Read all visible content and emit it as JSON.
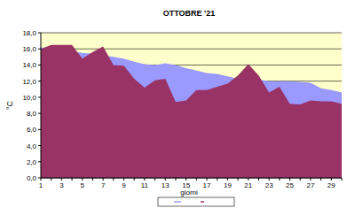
{
  "chart_data": {
    "type": "area",
    "title": "OTTOBRE '21",
    "x_label": "giorni",
    "y_label": "°C",
    "categories": [
      "1",
      null,
      "3",
      null,
      "5",
      null,
      "7",
      null,
      "9",
      null,
      "11",
      null,
      "13",
      null,
      "15",
      null,
      "17",
      null,
      "19",
      null,
      "21",
      null,
      "23",
      null,
      "25",
      null,
      "27",
      null,
      "29",
      null
    ],
    "series": [
      {
        "color": "#9999ff",
        "values": [
          16.2,
          16.0,
          15.9,
          15.7,
          15.5,
          15.4,
          15.2,
          15.0,
          14.8,
          14.4,
          14.1,
          14.0,
          14.2,
          14.0,
          13.6,
          13.3,
          13.0,
          12.9,
          12.6,
          12.3,
          12.1,
          12.2,
          12.0,
          12.0,
          12.0,
          11.9,
          11.8,
          11.1,
          10.9,
          10.6
        ]
      },
      {
        "color": "#993366",
        "values": [
          16.0,
          16.5,
          16.5,
          16.5,
          14.8,
          15.6,
          16.3,
          14.0,
          13.9,
          12.3,
          11.2,
          12.1,
          12.3,
          9.4,
          9.6,
          10.9,
          10.9,
          11.3,
          11.7,
          12.7,
          14.1,
          12.7,
          10.6,
          11.3,
          9.2,
          9.1,
          9.6,
          9.5,
          9.5,
          9.2
        ]
      }
    ],
    "ylim": [
      0,
      18
    ],
    "yticks": [
      {
        "value": 0,
        "label": "0,0"
      },
      {
        "value": 2,
        "label": "2,0"
      },
      {
        "value": 4,
        "label": "4,0"
      },
      {
        "value": 6,
        "label": "6,0"
      },
      {
        "value": 8,
        "label": "8,0"
      },
      {
        "value": 10,
        "label": "10,0"
      },
      {
        "value": 12,
        "label": "12,0"
      },
      {
        "value": 14,
        "label": "14,0"
      },
      {
        "value": 16,
        "label": "16,0"
      },
      {
        "value": 18,
        "label": "18,0"
      }
    ],
    "grid": true
  }
}
